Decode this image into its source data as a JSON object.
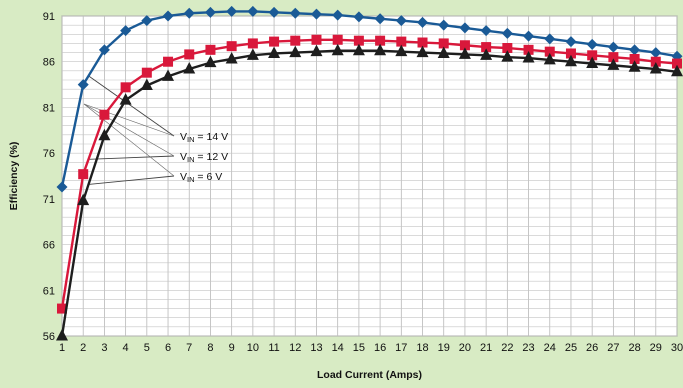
{
  "chart_data": {
    "type": "line",
    "xlabel": "Load Current (Amps)",
    "ylabel": "Efficiency (%)",
    "xlim": [
      1,
      30
    ],
    "ylim": [
      56,
      91
    ],
    "x_ticks": [
      1,
      2,
      3,
      4,
      5,
      6,
      7,
      8,
      9,
      10,
      11,
      12,
      13,
      14,
      15,
      16,
      17,
      18,
      19,
      20,
      21,
      22,
      23,
      24,
      25,
      26,
      27,
      28,
      29,
      30
    ],
    "y_ticks": [
      56,
      61,
      66,
      71,
      76,
      81,
      86,
      91
    ],
    "grid": true,
    "x": [
      1,
      2,
      3,
      4,
      5,
      6,
      7,
      8,
      9,
      10,
      11,
      12,
      13,
      14,
      15,
      16,
      17,
      18,
      19,
      20,
      21,
      22,
      23,
      24,
      25,
      26,
      27,
      28,
      29,
      30
    ],
    "series": [
      {
        "name": "V_IN = 14 V",
        "color": "#1a5a96",
        "marker": "diamond",
        "values": [
          72.3,
          83.5,
          87.3,
          89.4,
          90.5,
          91.0,
          91.3,
          91.4,
          91.5,
          91.5,
          91.4,
          91.3,
          91.2,
          91.1,
          90.9,
          90.7,
          90.5,
          90.3,
          90.0,
          89.7,
          89.4,
          89.1,
          88.8,
          88.5,
          88.2,
          87.9,
          87.6,
          87.3,
          87.0,
          86.6
        ]
      },
      {
        "name": "V_IN = 12 V",
        "color": "#d9183b",
        "marker": "square",
        "values": [
          59.0,
          73.7,
          80.2,
          83.2,
          84.8,
          86.0,
          86.8,
          87.3,
          87.7,
          88.0,
          88.2,
          88.3,
          88.4,
          88.4,
          88.3,
          88.3,
          88.2,
          88.1,
          88.0,
          87.8,
          87.6,
          87.5,
          87.3,
          87.1,
          86.9,
          86.7,
          86.5,
          86.3,
          86.0,
          85.8
        ]
      },
      {
        "name": "V_IN = 6 V",
        "color": "#1e1e1e",
        "marker": "triangle",
        "values": [
          56.0,
          70.8,
          77.9,
          81.8,
          83.4,
          84.4,
          85.2,
          85.9,
          86.3,
          86.7,
          86.9,
          87.0,
          87.1,
          87.2,
          87.2,
          87.2,
          87.1,
          87.0,
          86.9,
          86.8,
          86.7,
          86.5,
          86.4,
          86.2,
          86.0,
          85.8,
          85.6,
          85.4,
          85.2,
          84.9
        ]
      }
    ],
    "annotations": [
      {
        "prefix": "V",
        "sub": "IN",
        "text": " = 14 V",
        "series": 0
      },
      {
        "prefix": "V",
        "sub": "IN",
        "text": " = 12 V",
        "series": 1
      },
      {
        "prefix": "V",
        "sub": "IN",
        "text": " = 6 V",
        "series": 2
      }
    ]
  }
}
